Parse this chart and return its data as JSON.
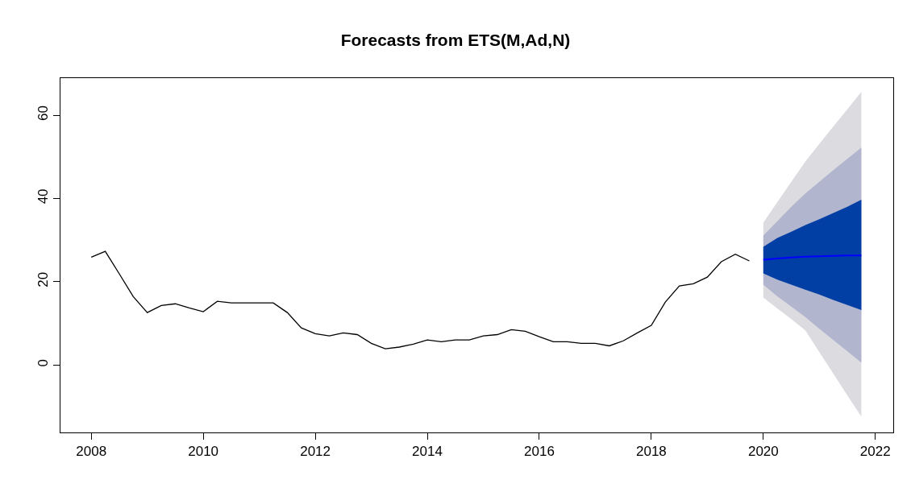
{
  "chart_data": {
    "type": "line",
    "title": "Forecasts from ETS(M,Ad,N)",
    "xlim": [
      2007.45,
      2022.32
    ],
    "xticks": [
      2008,
      2010,
      2012,
      2014,
      2016,
      2018,
      2020,
      2022
    ],
    "ylim": [
      -16.2,
      68.9
    ],
    "yticks": [
      0,
      20,
      40,
      60
    ],
    "marker": "none",
    "line_style": "solid",
    "series": [
      {
        "color": "#dbdbe0",
        "x": [
          2020,
          2020.25,
          2020.5,
          2020.75,
          2021,
          2021.25,
          2021.5,
          2021.75
        ],
        "values": [
          null,
          null,
          null,
          null,
          null,
          null,
          null,
          null
        ],
        "lower": [
          16.2,
          13.6,
          11.0,
          8.3,
          3.1,
          -2.1,
          -7.3,
          -12.4
        ],
        "upper": [
          34.2,
          39.1,
          44.0,
          48.9,
          53.1,
          57.3,
          61.4,
          65.6
        ]
      },
      {
        "color": "#b1b5ce",
        "x": [
          2020,
          2020.25,
          2020.5,
          2020.75,
          2021,
          2021.25,
          2021.5,
          2021.75
        ],
        "values": [
          null,
          null,
          null,
          null,
          null,
          null,
          null,
          null
        ],
        "lower": [
          19.3,
          16.5,
          14.0,
          11.5,
          8.7,
          6.0,
          3.3,
          0.6
        ],
        "upper": [
          31.1,
          34.5,
          38.0,
          41.2,
          44.0,
          46.8,
          49.5,
          52.2
        ]
      },
      {
        "color": "#023fa5",
        "x": [
          2020,
          2020.25,
          2020.5,
          2020.75,
          2021,
          2021.25,
          2021.5,
          2021.75
        ],
        "values": [
          null,
          null,
          null,
          null,
          null,
          null,
          null,
          null
        ],
        "lower": [
          22.0,
          20.5,
          19.3,
          18.1,
          16.9,
          15.6,
          14.4,
          13.2
        ],
        "upper": [
          28.4,
          30.5,
          32.0,
          33.6,
          35.0,
          36.5,
          38.0,
          39.7
        ]
      },
      {
        "color": "#000000",
        "x": [
          2008,
          2008.25,
          2008.5,
          2008.75,
          2009,
          2009.25,
          2009.5,
          2009.75,
          2010,
          2010.25,
          2010.5,
          2010.75,
          2011,
          2011.25,
          2011.5,
          2011.75,
          2012,
          2012.25,
          2012.5,
          2012.75,
          2013,
          2013.25,
          2013.5,
          2013.75,
          2014,
          2014.25,
          2014.5,
          2014.75,
          2015,
          2015.25,
          2015.5,
          2015.75,
          2016,
          2016.25,
          2016.5,
          2016.75,
          2017,
          2017.25,
          2017.5,
          2017.75,
          2018,
          2018.25,
          2018.5,
          2018.75,
          2019,
          2019.25,
          2019.5,
          2019.75
        ],
        "values": [
          25.9,
          27.3,
          21.9,
          16.4,
          12.6,
          14.3,
          14.7,
          13.7,
          12.8,
          15.3,
          14.9,
          14.9,
          14.9,
          14.9,
          12.6,
          8.9,
          7.5,
          7.0,
          7.7,
          7.3,
          5.2,
          3.9,
          4.3,
          5.0,
          6.0,
          5.6,
          6.0,
          6.0,
          7.0,
          7.3,
          8.5,
          8.1,
          6.8,
          5.6,
          5.6,
          5.2,
          5.2,
          4.6,
          5.8,
          7.7,
          9.5,
          15.1,
          19.0,
          19.5,
          21.1,
          24.8,
          26.6,
          25.0
        ]
      },
      {
        "color": "#0000ff",
        "x": [
          2020,
          2020.25,
          2020.5,
          2020.75,
          2021,
          2021.25,
          2021.5,
          2021.75
        ],
        "values": [
          25.3,
          25.6,
          25.8,
          26.0,
          26.1,
          26.2,
          26.3,
          26.3
        ]
      }
    ]
  }
}
